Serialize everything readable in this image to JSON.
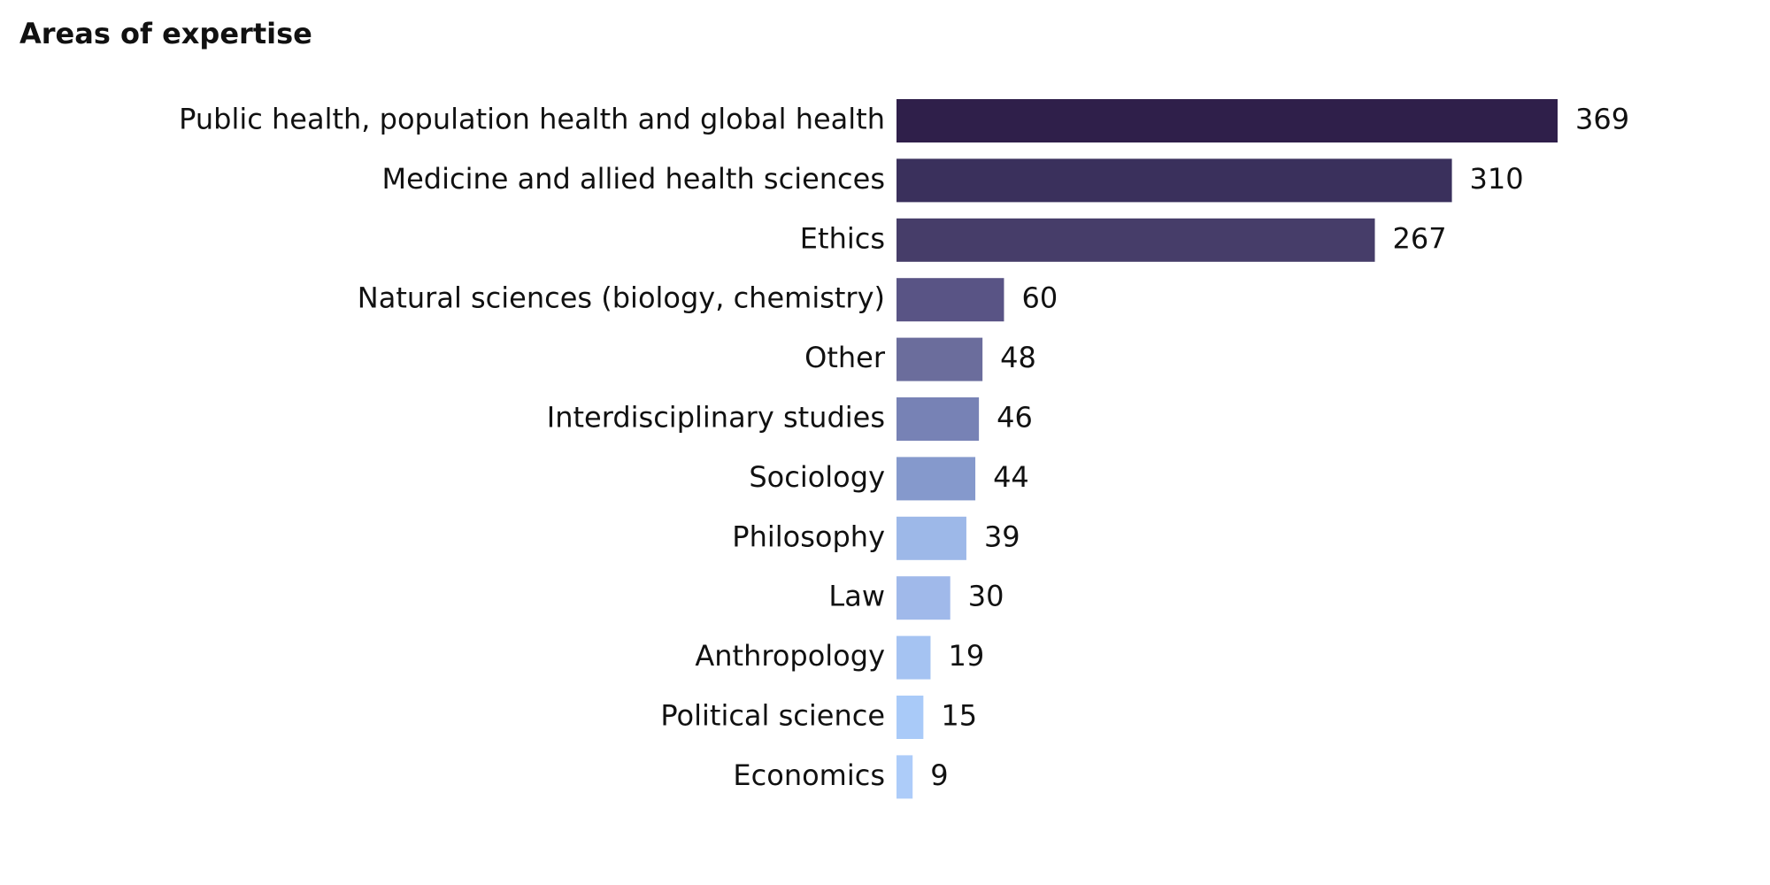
{
  "chart_data": {
    "type": "bar",
    "orientation": "horizontal",
    "title": "Areas of expertise",
    "categories": [
      "Public health, population health and global health",
      "Medicine and allied health sciences",
      "Ethics",
      "Natural sciences (biology, chemistry)",
      "Other",
      "Interdisciplinary studies",
      "Sociology",
      "Philosophy",
      "Law",
      "Anthropology",
      "Political science",
      "Economics"
    ],
    "values": [
      369,
      310,
      267,
      60,
      48,
      46,
      44,
      39,
      30,
      19,
      15,
      9
    ],
    "colors": [
      "#2f1f4a",
      "#3a305c",
      "#463d69",
      "#595485",
      "#6b6d9c",
      "#7782b5",
      "#8599cc",
      "#9db8e8",
      "#a0b9ea",
      "#a5c3f2",
      "#a9caf8",
      "#adccf9"
    ]
  }
}
